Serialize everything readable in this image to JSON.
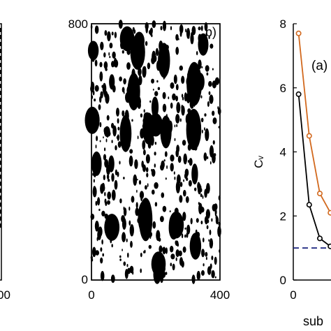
{
  "colors": {
    "ink": "#000000",
    "orange_series": "#d2691e",
    "black_series": "#000000",
    "reference_line": "#1a237e"
  },
  "chart_data": [
    {
      "type": "other",
      "panel": "left (cropped)",
      "x_tick_labels": [
        "00"
      ]
    },
    {
      "type": "other",
      "panel": "b)",
      "panel_label": "b)",
      "xlim": [
        0,
        400
      ],
      "ylim": [
        0,
        800
      ],
      "x_tick_labels": [
        "0",
        "400"
      ],
      "y_tick_labels": [
        "0",
        "800"
      ]
    },
    {
      "type": "line",
      "panel": "right (cropped)",
      "panel_label": "(a)",
      "xlabel": "sub",
      "ylabel": "Cᵥ",
      "ylim": [
        0,
        8
      ],
      "y_ticks": [
        0,
        2,
        4,
        6,
        8
      ],
      "x_tick_labels": [
        "0"
      ],
      "series": [
        {
          "color": "#d2691e",
          "x": [
            4,
            12,
            20,
            28
          ],
          "values": [
            7.7,
            4.5,
            2.7,
            2.1
          ]
        },
        {
          "color": "#000000",
          "x": [
            4,
            12,
            20,
            28
          ],
          "values": [
            5.8,
            2.35,
            1.3,
            1.05
          ]
        }
      ],
      "reference_line": {
        "y": 1.0,
        "style": "dashed"
      }
    }
  ]
}
